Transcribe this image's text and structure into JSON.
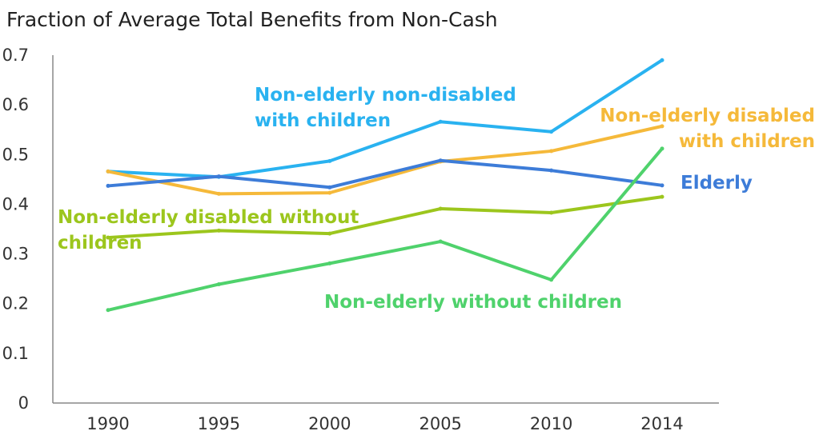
{
  "chart_data": {
    "type": "line",
    "title": "Fraction of Average Total Benefits from Non-Cash",
    "xlabel": "",
    "ylabel": "",
    "x": [
      "1990",
      "1995",
      "2000",
      "2005",
      "2010",
      "2014"
    ],
    "ylim": [
      0,
      0.7
    ],
    "yticks": [
      "0",
      "0.1",
      "0.2",
      "0.3",
      "0.4",
      "0.5",
      "0.6",
      "0.7"
    ],
    "grid": false,
    "legend": "inline labels",
    "series": [
      {
        "name": "Non-elderly non-disabled with children",
        "label_lines": [
          "Non-elderly non-disabled",
          "with children"
        ],
        "color": "#29b2f0",
        "values": [
          0.466,
          0.455,
          0.487,
          0.566,
          0.546,
          0.69
        ]
      },
      {
        "name": "Non-elderly disabled with children",
        "label_lines": [
          "Non-elderly disabled",
          "with children"
        ],
        "color": "#f5b93a",
        "values": [
          0.466,
          0.421,
          0.423,
          0.486,
          0.507,
          0.557
        ]
      },
      {
        "name": "Elderly",
        "label_lines": [
          "Elderly"
        ],
        "color": "#3d7cd8",
        "values": [
          0.437,
          0.456,
          0.434,
          0.488,
          0.468,
          0.438
        ]
      },
      {
        "name": "Non-elderly disabled without children",
        "label_lines": [
          "Non-elderly disabled without",
          "children"
        ],
        "color": "#9cc61d",
        "values": [
          0.333,
          0.347,
          0.341,
          0.391,
          0.383,
          0.415
        ]
      },
      {
        "name": "Non-elderly without children",
        "label_lines": [
          "Non-elderly without children"
        ],
        "color": "#4fd26c",
        "values": [
          0.187,
          0.239,
          0.281,
          0.325,
          0.248,
          0.512
        ]
      }
    ]
  }
}
